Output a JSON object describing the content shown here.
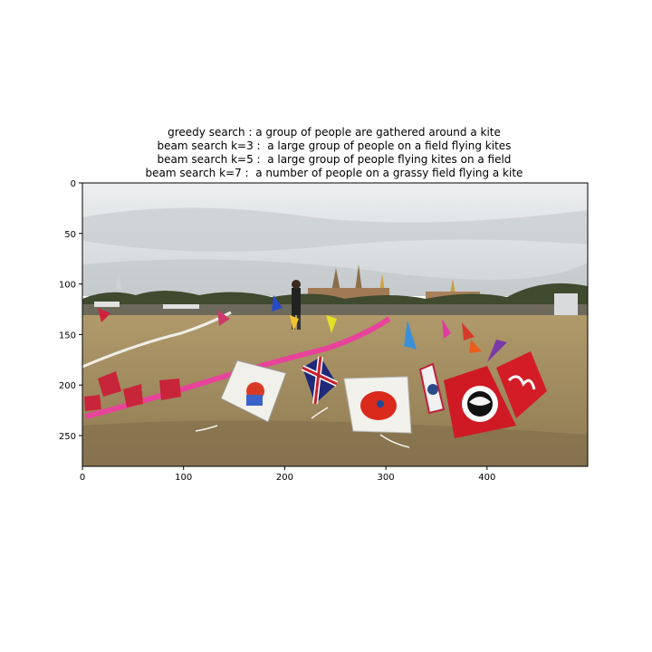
{
  "figure": {
    "title_lines": [
      "greedy search : a group of people are gathered around a kite",
      "beam search k=3 :  a large group of people on a field flying kites",
      "beam search k=5 :  a large group of people flying kites on a field",
      "beam search k=7 :  a number of people on a grassy field flying a kite"
    ],
    "image_description": "photo of a large crowd flying colorful kites on a grassy field with temple spires in the background",
    "x_ticks": [
      "0",
      "100",
      "200",
      "300",
      "400"
    ],
    "y_ticks": [
      "0",
      "50",
      "100",
      "150",
      "200",
      "250"
    ]
  },
  "colors": {
    "sky": "#d9dde0",
    "grass": "#a88f5f",
    "axis": "#000000"
  }
}
